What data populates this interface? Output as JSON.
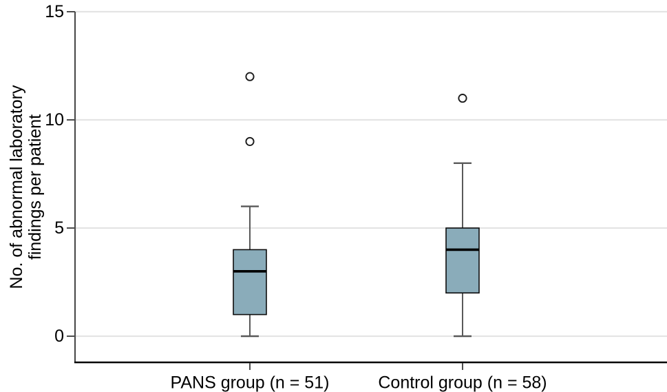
{
  "figure": {
    "background": "#ffffff"
  },
  "chart_data": {
    "type": "boxplot",
    "title": "",
    "xlabel": "",
    "ylabel": "No. of abnormal laboratory findings per patient",
    "ylabel_lines": [
      "No. of abnormal laboratory",
      "findings per patient"
    ],
    "yticks": [
      0,
      5,
      10,
      15
    ],
    "ylim": [
      -1.2,
      15
    ],
    "grid": "horizontal",
    "legend_position": "none",
    "categories": [
      "PANS group (n = 51)",
      "Control group (n = 58)"
    ],
    "series": [
      {
        "name": "PANS group (n = 51)",
        "n": 51,
        "whisker_low": 0,
        "q1": 1,
        "median": 3,
        "q3": 4,
        "whisker_high": 6,
        "outliers": [
          9,
          12
        ]
      },
      {
        "name": "Control group (n = 58)",
        "n": 58,
        "whisker_low": 0,
        "q1": 2,
        "median": 4,
        "q3": 5,
        "whisker_high": 8,
        "outliers": [
          11
        ]
      }
    ],
    "colors": {
      "box_fill": "#8aacba",
      "box_border": "#0d0d0d",
      "median": "#000000",
      "whisker": "#595959",
      "cap": "#595959",
      "grid": "#e4e4e4",
      "y_axis": "#4d4d4d",
      "x_axis": "#000000",
      "tick": "#4d4d4d",
      "outlier_stroke": "#1a1a1a",
      "outlier_fill": "#ffffff",
      "text": "#000000"
    }
  }
}
